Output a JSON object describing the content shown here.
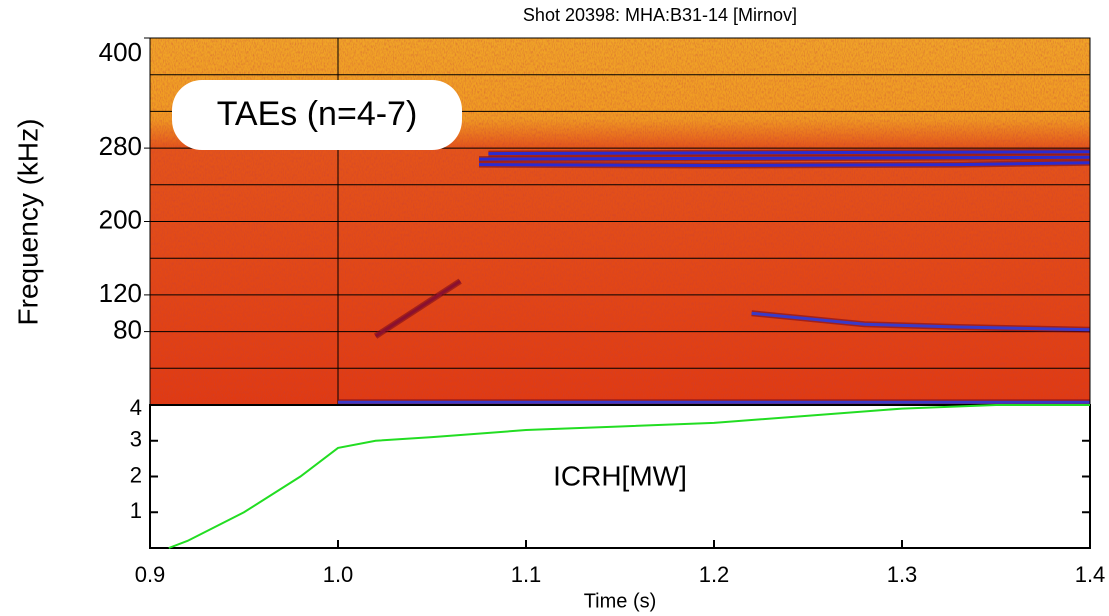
{
  "chart_data": [
    {
      "type": "spectrogram",
      "title": "Shot 20398: MHA:B31-14 [Mirnov]",
      "y_label": "Frequency (kHz)",
      "annotation": "TAEs (n=4-7)",
      "xlim": [
        0.9,
        1.4
      ],
      "ylim": [
        0,
        400
      ],
      "yticks": [
        80,
        120,
        200,
        280,
        400
      ],
      "grid_y": [
        40,
        80,
        120,
        160,
        200,
        240,
        280,
        320,
        360
      ],
      "grid": true,
      "traces": [
        {
          "color": "#2b2bd0",
          "x": [
            1.075,
            1.2,
            1.33,
            1.4
          ],
          "values": [
            262,
            261,
            262,
            264
          ]
        },
        {
          "color": "#2b2bd0",
          "x": [
            1.075,
            1.4
          ],
          "values": [
            268,
            270
          ]
        },
        {
          "color": "#2b2bd0",
          "x": [
            1.08,
            1.4
          ],
          "values": [
            274,
            276
          ]
        },
        {
          "color": "#3a3ac8",
          "x": [
            1.22,
            1.28,
            1.33,
            1.4
          ],
          "values": [
            100,
            88,
            85,
            82
          ]
        },
        {
          "color": "#8a1030",
          "x": [
            1.02,
            1.05,
            1.065
          ],
          "values": [
            75,
            115,
            135
          ]
        },
        {
          "color": "#3a3ac8",
          "x": [
            1.0,
            1.4
          ],
          "values": [
            3,
            3
          ]
        }
      ]
    },
    {
      "type": "line",
      "annotation": "ICRH[MW]",
      "x_label": "Time (s)",
      "xlim": [
        0.9,
        1.4
      ],
      "ylim": [
        0,
        4
      ],
      "xticks": [
        0.9,
        {
          "value": 1.0,
          "label": "1.0"
        },
        1.1,
        1.2,
        1.3,
        1.4
      ],
      "yticks": [
        1,
        2,
        3,
        4
      ],
      "series": [
        {
          "color": "#22dd22",
          "x": [
            0.91,
            0.92,
            0.95,
            0.98,
            1.0,
            1.02,
            1.05,
            1.1,
            1.15,
            1.2,
            1.25,
            1.3,
            1.35,
            1.4
          ],
          "values": [
            0,
            0.2,
            1.0,
            2.0,
            2.8,
            3.0,
            3.1,
            3.3,
            3.4,
            3.5,
            3.7,
            3.9,
            4.0,
            4.0
          ]
        }
      ]
    }
  ]
}
